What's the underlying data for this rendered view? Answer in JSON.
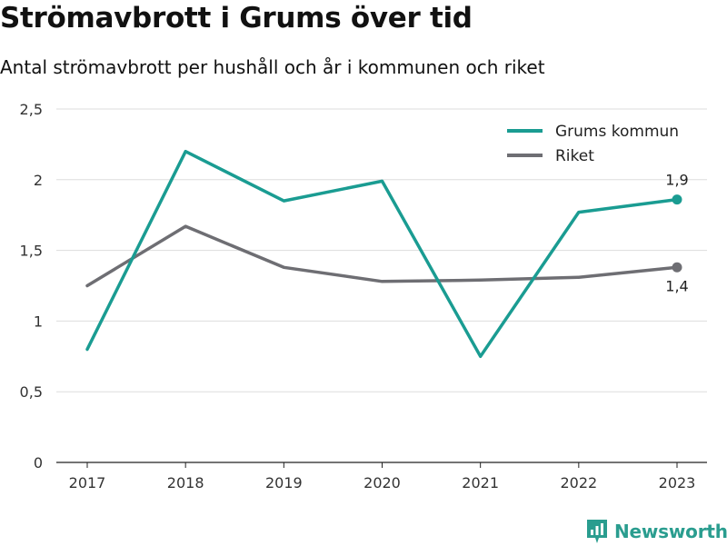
{
  "title": "Strömavbrott i Grums över tid",
  "subtitle": "Antal strömavbrott per hushåll och år i kommunen och riket",
  "brand": {
    "name": "Newsworthy",
    "icon": "newsworthy-logo-icon"
  },
  "colors": {
    "grums": "#1a9c92",
    "riket": "#6e6e73",
    "grid": "#dddddd",
    "axis": "#222222",
    "brand": "#2a9d8f"
  },
  "chart_data": {
    "type": "line",
    "x": [
      2017,
      2018,
      2019,
      2020,
      2021,
      2022,
      2023
    ],
    "x_tick_labels": [
      "2017",
      "2018",
      "2019",
      "2020",
      "2021",
      "2022",
      "2023"
    ],
    "ylim": [
      0,
      2.5
    ],
    "y_ticks": [
      0,
      0.5,
      1,
      1.5,
      2,
      2.5
    ],
    "y_tick_labels": [
      "0",
      "0,5",
      "1",
      "1,5",
      "2",
      "2,5"
    ],
    "grid": true,
    "legend_position": "top-right",
    "series": [
      {
        "name": "Grums kommun",
        "color": "#1a9c92",
        "values": [
          0.8,
          2.2,
          1.85,
          1.99,
          0.75,
          1.77,
          1.86
        ],
        "end_label": "1,9",
        "end_label_position": "above"
      },
      {
        "name": "Riket",
        "color": "#6e6e73",
        "values": [
          1.25,
          1.67,
          1.38,
          1.28,
          1.29,
          1.31,
          1.38
        ],
        "end_label": "1,4",
        "end_label_position": "below"
      }
    ]
  }
}
